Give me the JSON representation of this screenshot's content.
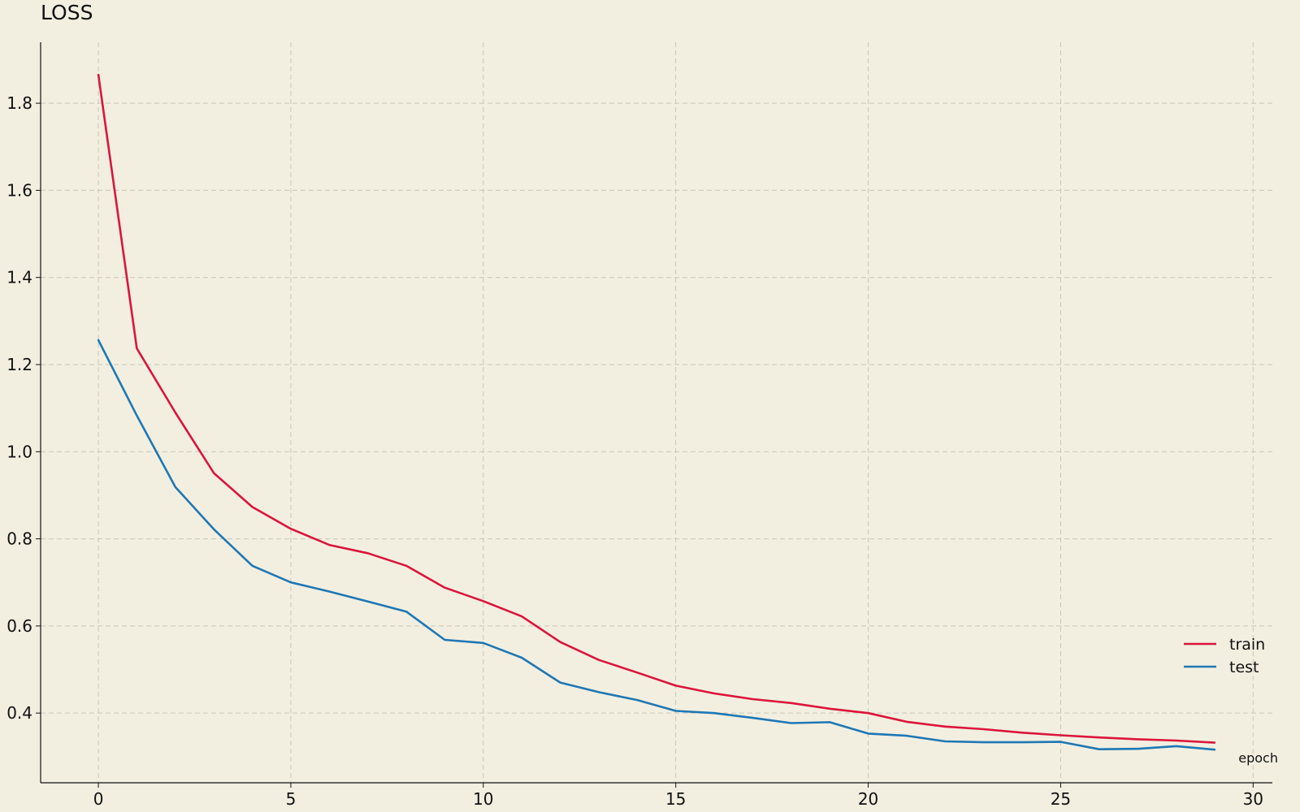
{
  "chart_data": {
    "type": "line",
    "title": "LOSS",
    "xlabel": "epoch",
    "ylabel": "",
    "xlim": [
      -1.5,
      30.5
    ],
    "ylim": [
      0.24,
      1.94
    ],
    "xticks": [
      0,
      5,
      10,
      15,
      20,
      25,
      30
    ],
    "yticks": [
      0.4,
      0.6,
      0.8,
      1.0,
      1.2,
      1.4,
      1.6,
      1.8
    ],
    "grid": true,
    "legend_position": "lower-right",
    "x": [
      0,
      1,
      2,
      3,
      4,
      5,
      6,
      7,
      8,
      9,
      10,
      11,
      12,
      13,
      14,
      15,
      16,
      17,
      18,
      19,
      20,
      21,
      22,
      23,
      24,
      25,
      26,
      27,
      28,
      29
    ],
    "series": [
      {
        "name": "train",
        "color": "#dc143c",
        "values": [
          1.865,
          1.237,
          1.09,
          0.951,
          0.873,
          0.823,
          0.786,
          0.767,
          0.738,
          0.688,
          0.657,
          0.622,
          0.563,
          0.522,
          0.493,
          0.463,
          0.445,
          0.432,
          0.423,
          0.41,
          0.4,
          0.38,
          0.369,
          0.363,
          0.355,
          0.349,
          0.344,
          0.34,
          0.337,
          0.332
        ]
      },
      {
        "name": "test",
        "color": "#1f77b4",
        "values": [
          1.256,
          1.083,
          0.919,
          0.822,
          0.738,
          0.7,
          0.679,
          0.656,
          0.633,
          0.568,
          0.561,
          0.527,
          0.47,
          0.448,
          0.43,
          0.405,
          0.4,
          0.389,
          0.377,
          0.379,
          0.353,
          0.348,
          0.335,
          0.333,
          0.333,
          0.334,
          0.317,
          0.318,
          0.324,
          0.316
        ]
      }
    ]
  }
}
